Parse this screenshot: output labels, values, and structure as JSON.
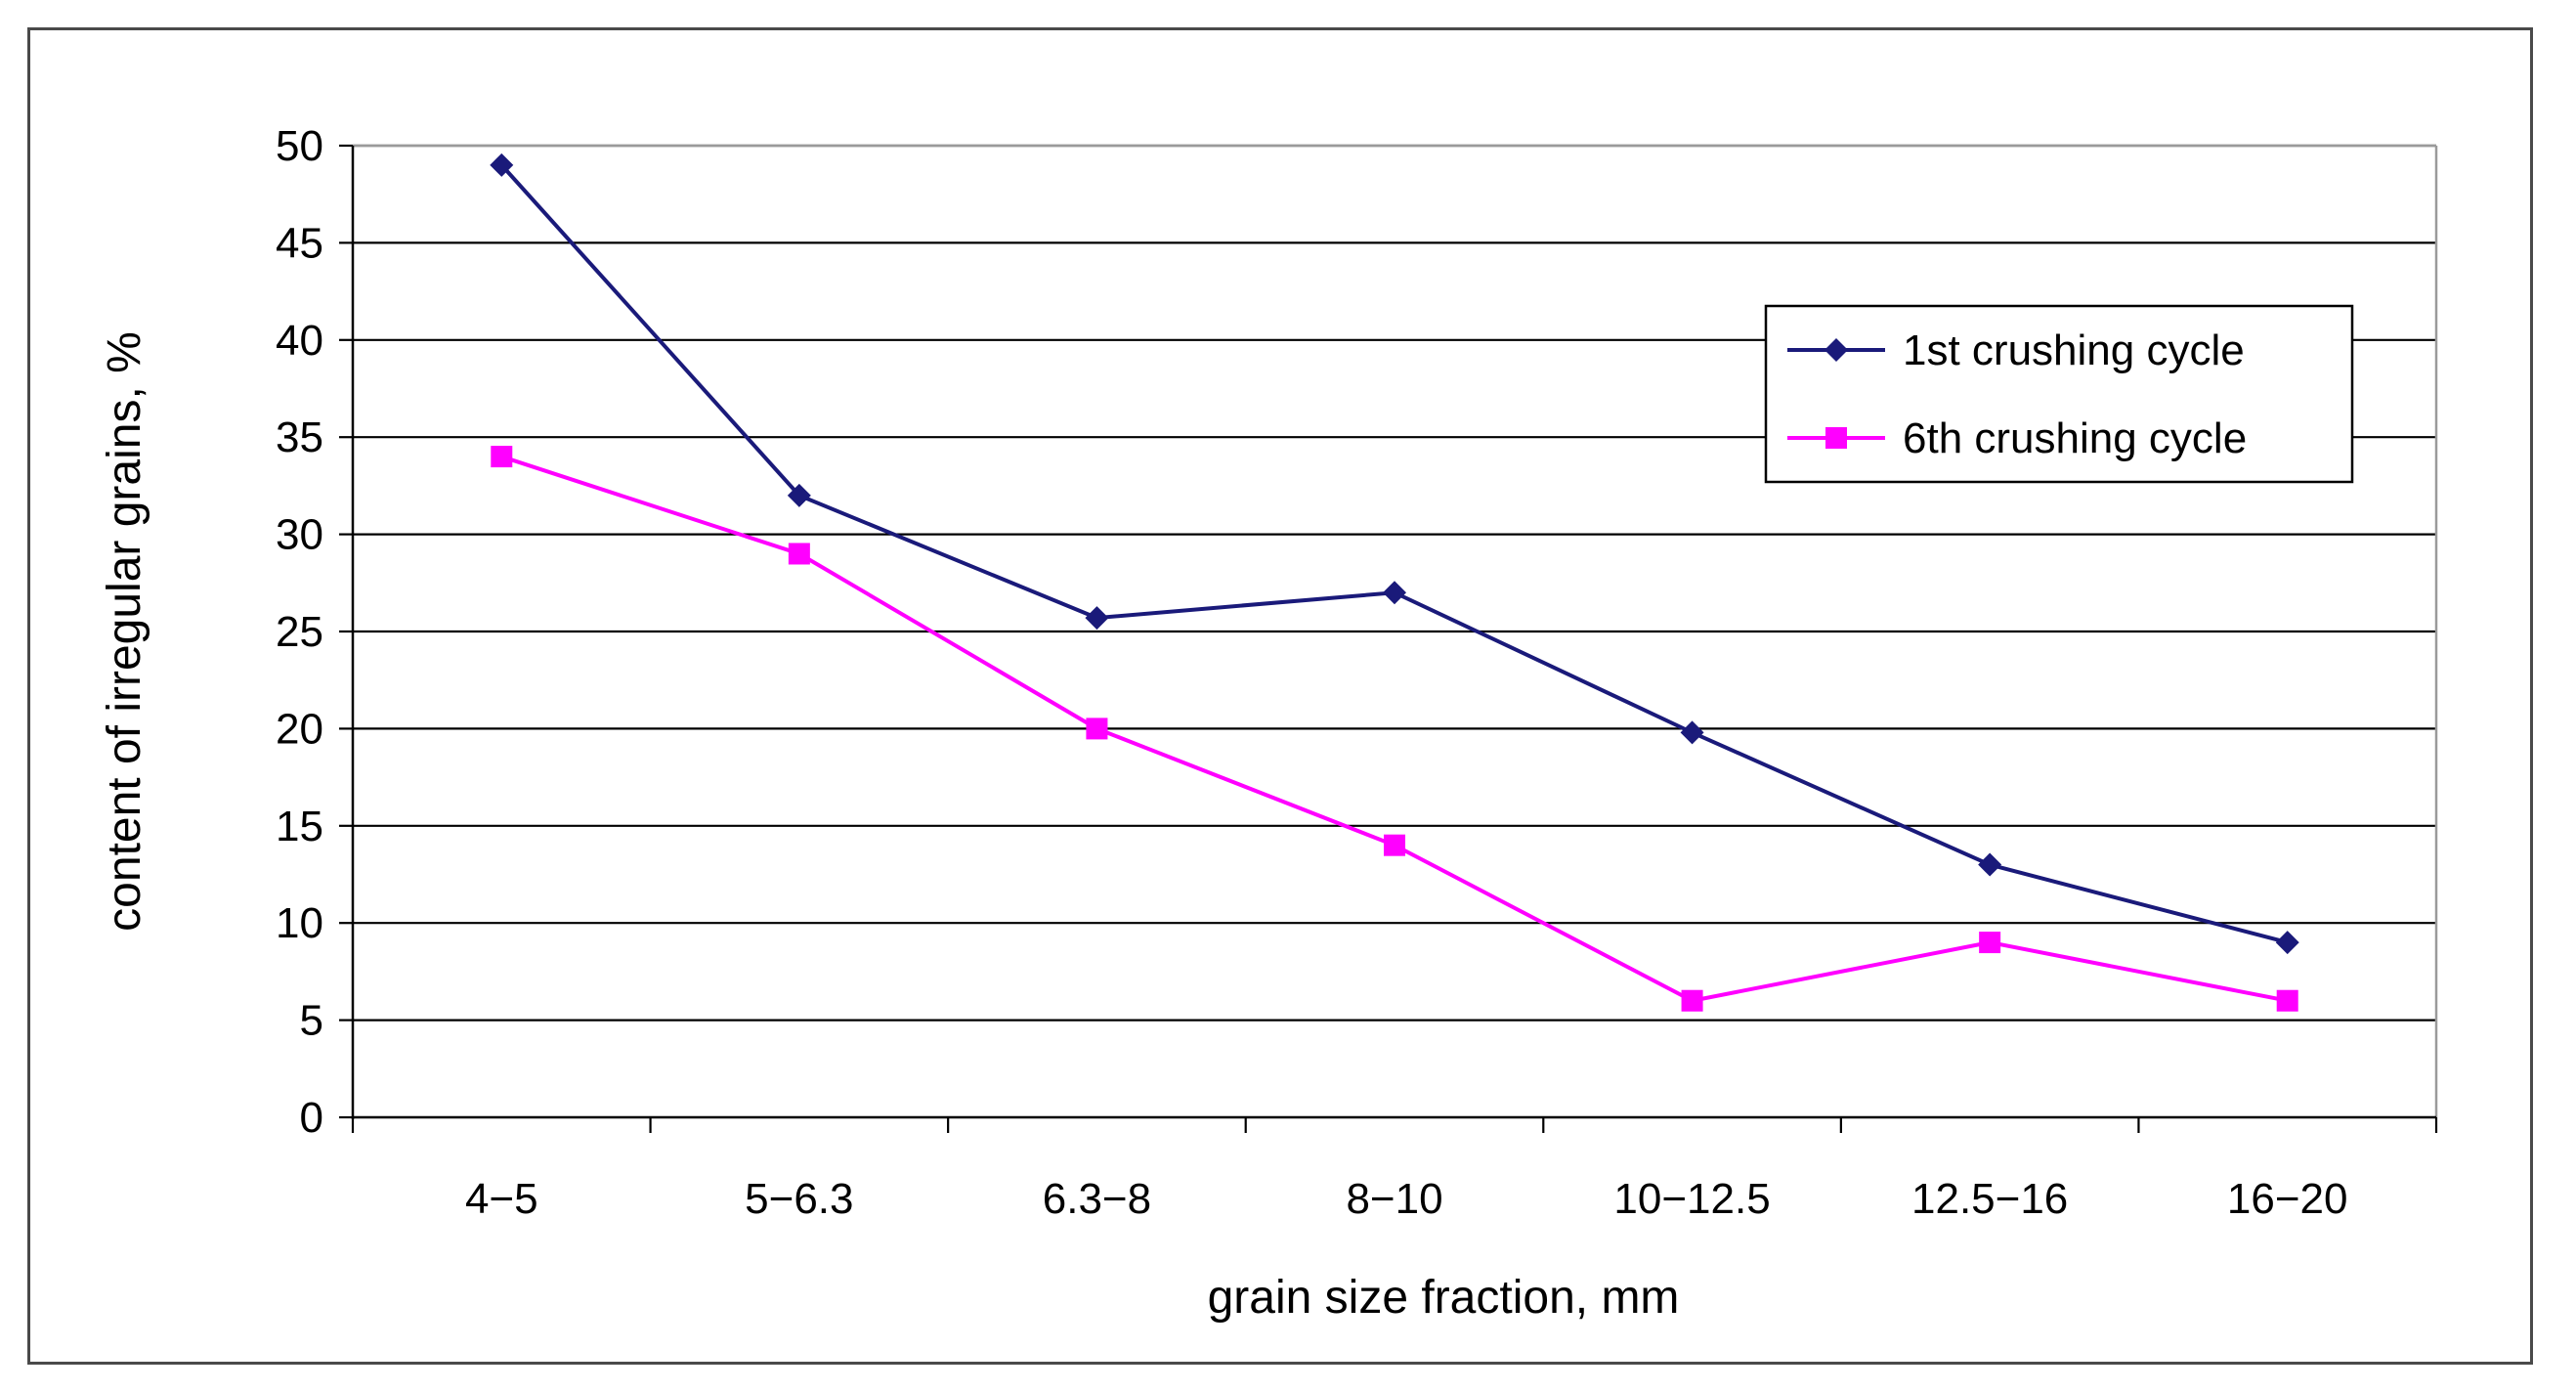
{
  "chart_data": {
    "type": "line",
    "title": "",
    "xlabel": "grain size fraction, mm",
    "ylabel": "content of irregular grains, %",
    "categories": [
      "4−5",
      "5−6.3",
      "6.3−8",
      "8−10",
      "10−12.5",
      "12.5−16",
      "16−20"
    ],
    "ylim": [
      0,
      50
    ],
    "yticks": [
      0,
      5,
      10,
      15,
      20,
      25,
      30,
      35,
      40,
      45,
      50
    ],
    "ytick_labels": [
      "0",
      "5",
      "10",
      "15",
      "20",
      "25",
      "30",
      "35",
      "40",
      "45",
      "50"
    ],
    "grid": "horizontal",
    "legend_position": "top-right",
    "series": [
      {
        "name": "1st crushing cycle",
        "color": "#1a1a7a",
        "marker": "diamond",
        "values": [
          49,
          32,
          25.7,
          27,
          19.8,
          13,
          9
        ]
      },
      {
        "name": "6th crushing cycle",
        "color": "#ff00ff",
        "marker": "square",
        "values": [
          34,
          29,
          20,
          14,
          6,
          9,
          6
        ]
      }
    ]
  }
}
